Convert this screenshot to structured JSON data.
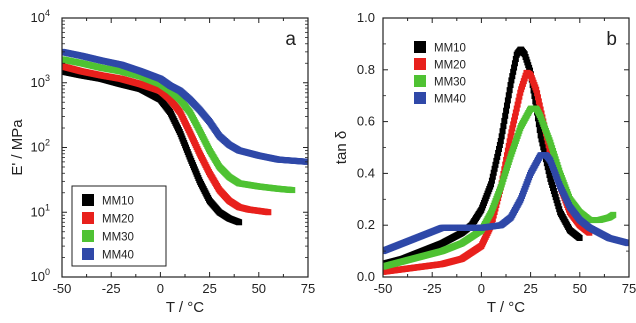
{
  "chart_data": [
    {
      "panel": "a",
      "type": "scatter",
      "xlabel": "T / °C",
      "ylabel": "E' / MPa",
      "xlim": [
        -50,
        75
      ],
      "ylim": [
        1,
        10000
      ],
      "yscale": "log",
      "x_ticks": [
        "-50",
        "-25",
        "0",
        "25",
        "50",
        "75"
      ],
      "y_ticks": [
        {
          "mantissa": "10",
          "exponent": "0"
        },
        {
          "mantissa": "10",
          "exponent": "1"
        },
        {
          "mantissa": "10",
          "exponent": "2"
        },
        {
          "mantissa": "10",
          "exponent": "3"
        },
        {
          "mantissa": "10",
          "exponent": "4"
        }
      ],
      "legend": "bottom-left",
      "series": [
        {
          "name": "MM10",
          "color": "#000000",
          "x": [
            -50,
            -40,
            -30,
            -20,
            -10,
            0,
            5,
            10,
            15,
            20,
            25,
            30,
            35,
            40
          ],
          "y": [
            1500,
            1300,
            1150,
            950,
            800,
            550,
            350,
            170,
            70,
            30,
            15,
            10,
            8,
            7
          ]
        },
        {
          "name": "MM20",
          "color": "#e8201c",
          "x": [
            -50,
            -40,
            -30,
            -20,
            -10,
            0,
            5,
            10,
            15,
            20,
            25,
            30,
            35,
            40,
            45,
            50,
            55
          ],
          "y": [
            1800,
            1500,
            1300,
            1150,
            950,
            750,
            550,
            350,
            170,
            80,
            40,
            22,
            15,
            12,
            11,
            10.5,
            10
          ]
        },
        {
          "name": "MM30",
          "color": "#4fc233",
          "x": [
            -50,
            -40,
            -30,
            -20,
            -10,
            0,
            5,
            10,
            15,
            20,
            25,
            30,
            35,
            40,
            50,
            60,
            67
          ],
          "y": [
            2300,
            2000,
            1700,
            1500,
            1250,
            950,
            750,
            550,
            350,
            180,
            90,
            50,
            35,
            28,
            25,
            23,
            22
          ]
        },
        {
          "name": "MM40",
          "color": "#2f48a8",
          "x": [
            -50,
            -40,
            -30,
            -20,
            -10,
            0,
            5,
            10,
            15,
            20,
            25,
            30,
            35,
            40,
            50,
            60,
            75
          ],
          "y": [
            3000,
            2600,
            2200,
            1900,
            1500,
            1150,
            900,
            750,
            550,
            380,
            250,
            150,
            110,
            90,
            75,
            65,
            60
          ]
        }
      ],
      "panel_label": "a"
    },
    {
      "panel": "b",
      "type": "scatter",
      "xlabel": "T / °C",
      "ylabel": "tan δ",
      "xlim": [
        -50,
        75
      ],
      "ylim": [
        0.0,
        1.0
      ],
      "x_ticks": [
        "-50",
        "-25",
        "0",
        "25",
        "50",
        "75"
      ],
      "y_ticks": [
        "0.0",
        "0.2",
        "0.4",
        "0.6",
        "0.8",
        "1.0"
      ],
      "legend": "top-left",
      "series": [
        {
          "name": "MM10",
          "color": "#000000",
          "x": [
            -50,
            -40,
            -30,
            -20,
            -10,
            -5,
            0,
            5,
            10,
            15,
            18,
            20,
            22,
            25,
            28,
            30,
            35,
            40,
            45,
            50
          ],
          "y": [
            0.05,
            0.07,
            0.1,
            0.13,
            0.17,
            0.2,
            0.26,
            0.36,
            0.53,
            0.75,
            0.86,
            0.88,
            0.86,
            0.79,
            0.65,
            0.55,
            0.38,
            0.25,
            0.18,
            0.15
          ]
        },
        {
          "name": "MM20",
          "color": "#e8201c",
          "x": [
            -50,
            -40,
            -30,
            -20,
            -10,
            0,
            5,
            10,
            15,
            20,
            23,
            25,
            28,
            30,
            35,
            40,
            45,
            50,
            55
          ],
          "y": [
            0.02,
            0.03,
            0.04,
            0.05,
            0.07,
            0.12,
            0.2,
            0.35,
            0.55,
            0.72,
            0.79,
            0.78,
            0.72,
            0.65,
            0.48,
            0.35,
            0.25,
            0.2,
            0.17
          ]
        },
        {
          "name": "MM30",
          "color": "#4fc233",
          "x": [
            -50,
            -40,
            -30,
            -20,
            -10,
            0,
            5,
            10,
            15,
            20,
            25,
            28,
            30,
            35,
            40,
            45,
            50,
            55,
            60,
            65,
            67
          ],
          "y": [
            0.04,
            0.06,
            0.08,
            0.1,
            0.13,
            0.18,
            0.25,
            0.35,
            0.47,
            0.58,
            0.65,
            0.65,
            0.62,
            0.52,
            0.4,
            0.3,
            0.25,
            0.22,
            0.22,
            0.23,
            0.24
          ]
        },
        {
          "name": "MM40",
          "color": "#2f48a8",
          "x": [
            -50,
            -40,
            -30,
            -20,
            -10,
            0,
            10,
            15,
            20,
            25,
            30,
            33,
            35,
            40,
            45,
            50,
            55,
            60,
            65,
            70,
            75
          ],
          "y": [
            0.1,
            0.13,
            0.16,
            0.19,
            0.19,
            0.19,
            0.2,
            0.23,
            0.3,
            0.4,
            0.47,
            0.47,
            0.45,
            0.35,
            0.27,
            0.22,
            0.19,
            0.17,
            0.15,
            0.14,
            0.13
          ]
        }
      ],
      "panel_label": "b"
    }
  ]
}
